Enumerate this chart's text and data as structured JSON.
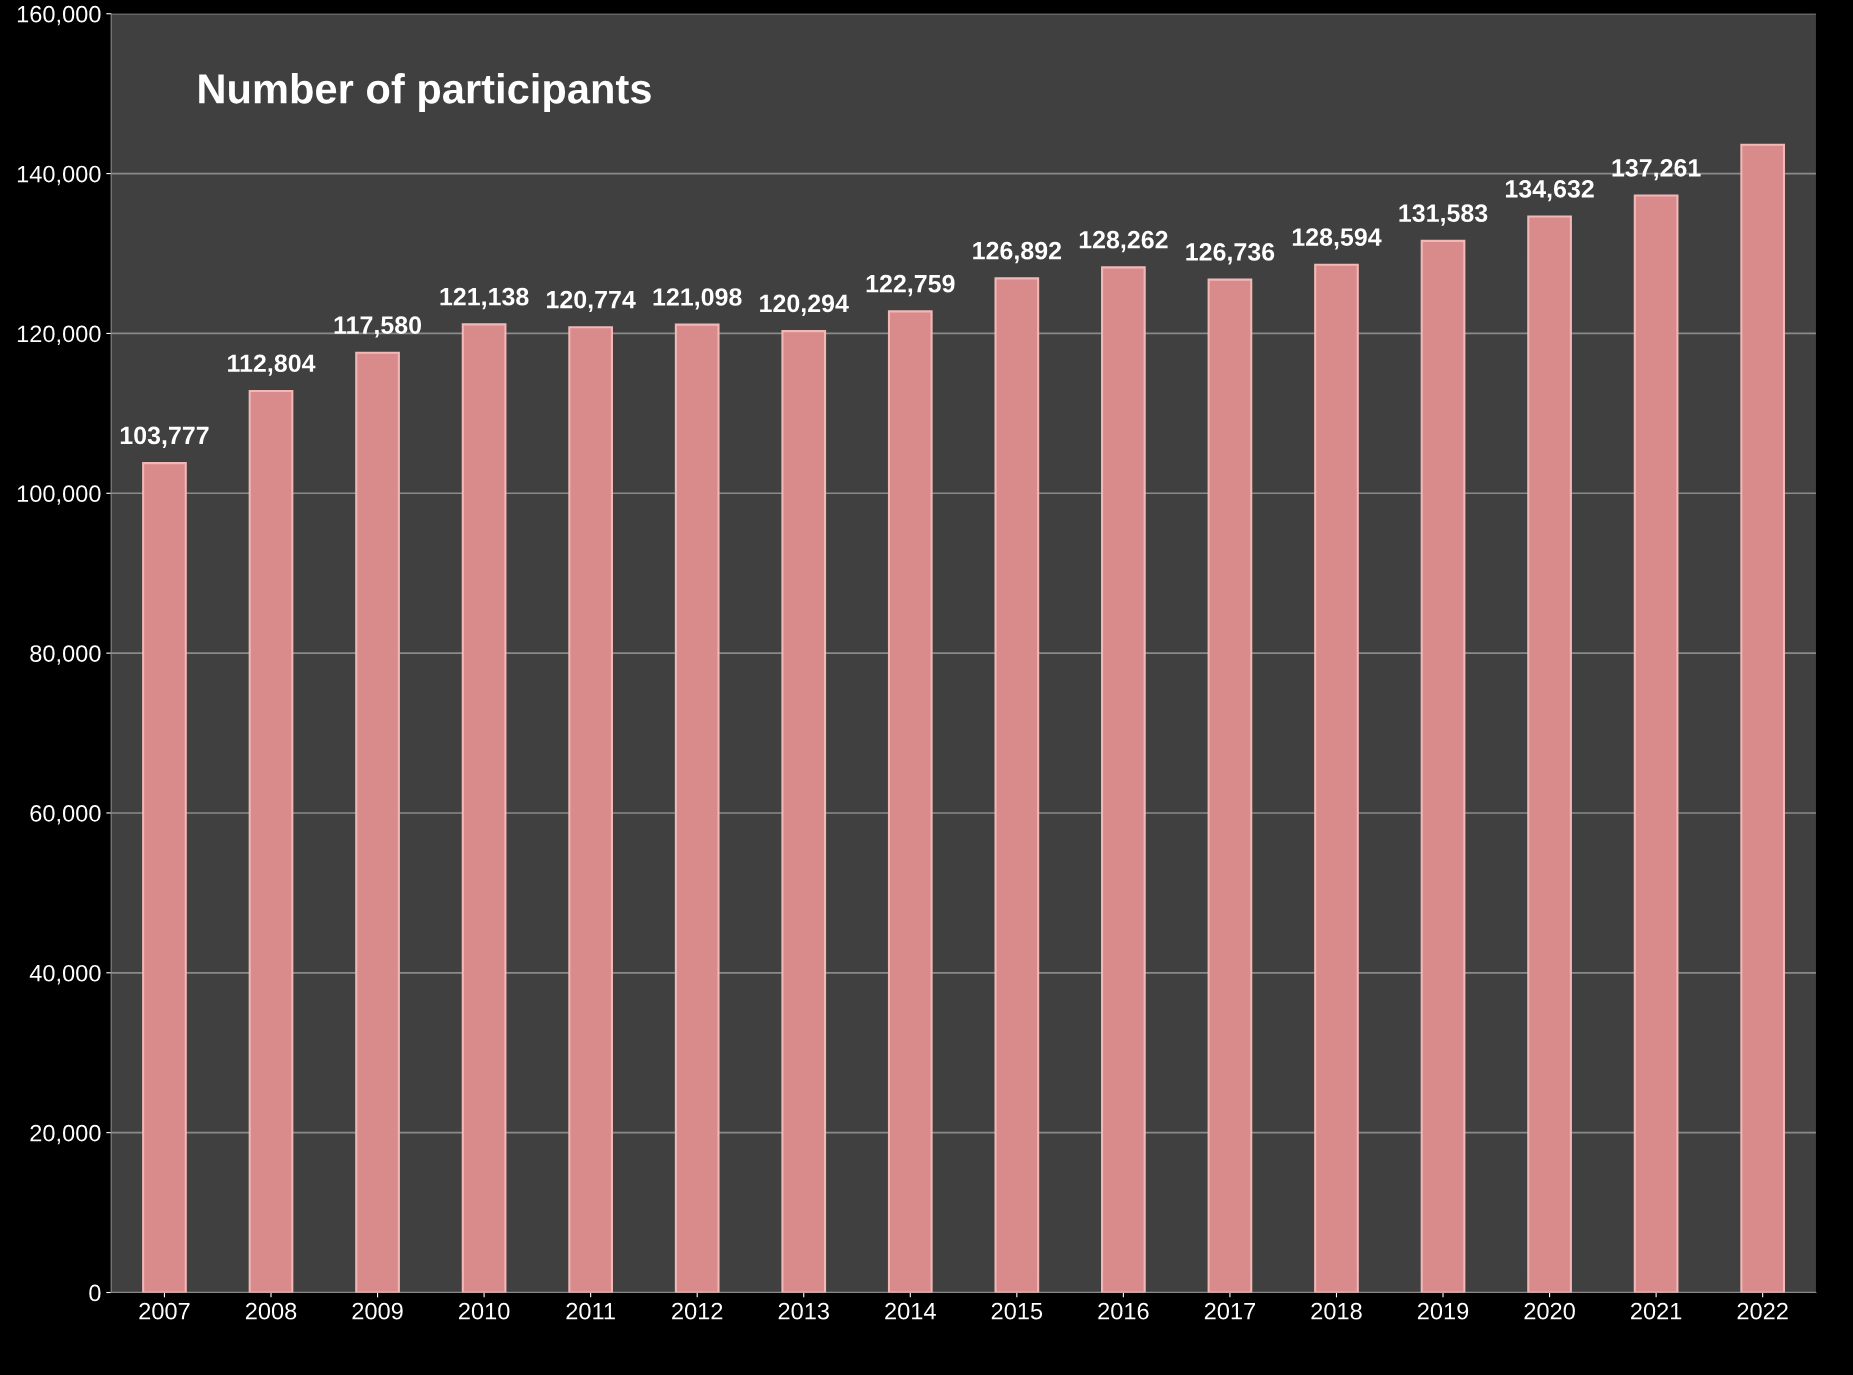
{
  "chart_data": {
    "type": "bar",
    "title": "Number of participants",
    "categories": [
      "2007",
      "2008",
      "2009",
      "2010",
      "2011",
      "2012",
      "2013",
      "2014",
      "2015",
      "2016",
      "2017",
      "2018",
      "2019",
      "2020",
      "2021",
      "2022"
    ],
    "values": [
      103777,
      112804,
      117580,
      121138,
      120774,
      121098,
      120294,
      122759,
      126892,
      128262,
      126736,
      128594,
      131583,
      134632,
      137261,
      143600
    ],
    "value_labels": [
      "103,777",
      "112,804",
      "117,580",
      "121,138",
      "120,774",
      "121,098",
      "120,294",
      "122,759",
      "126,892",
      "128,262",
      "126,736",
      "128,594",
      "131,583",
      "134,632",
      "137,261",
      null
    ],
    "color": "#d98a8a",
    "ylim": [
      0,
      160000
    ],
    "yticks": [
      {
        "value": 0,
        "label": "0"
      },
      {
        "value": 20000,
        "label": "20,000"
      },
      {
        "value": 40000,
        "label": "40,000"
      },
      {
        "value": 60000,
        "label": "60,000"
      },
      {
        "value": 80000,
        "label": "80,000"
      },
      {
        "value": 100000,
        "label": "100,000"
      },
      {
        "value": 120000,
        "label": "120,000"
      },
      {
        "value": 140000,
        "label": "140,000"
      },
      {
        "value": 160000,
        "label": "160,000"
      }
    ],
    "grid": "y",
    "legend": false
  }
}
